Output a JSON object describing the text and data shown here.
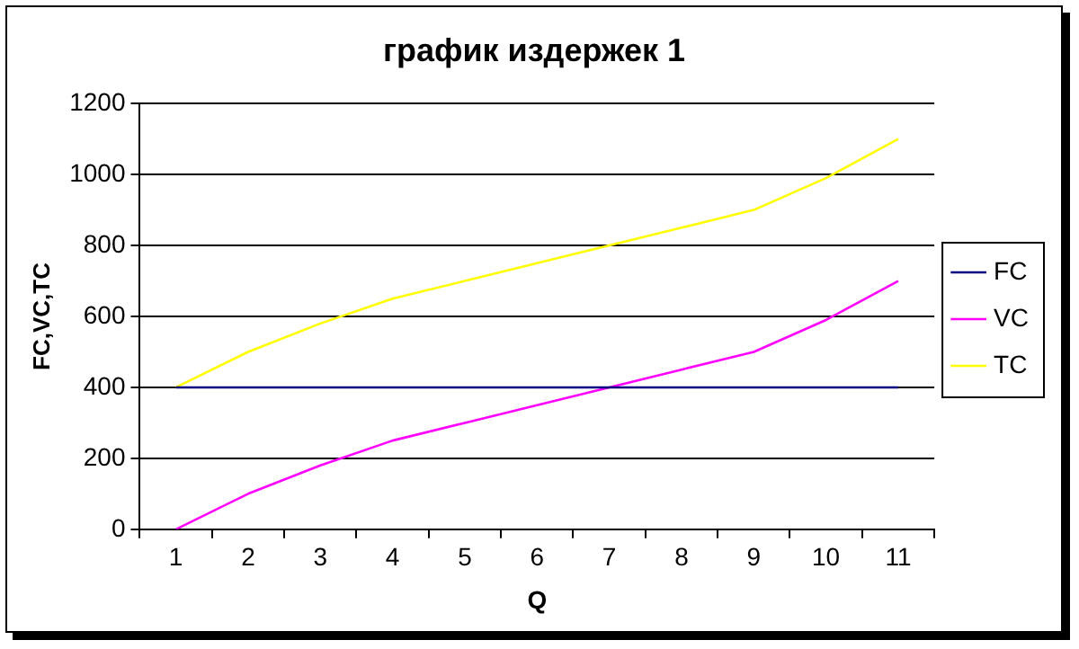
{
  "chart_data": {
    "type": "line",
    "title": "график издержек 1",
    "xlabel": "Q",
    "ylabel": "FC,VC,TC",
    "categories": [
      "1",
      "2",
      "3",
      "4",
      "5",
      "6",
      "7",
      "8",
      "9",
      "10",
      "11"
    ],
    "series": [
      {
        "name": "FC",
        "color": "#000080",
        "values": [
          400,
          400,
          400,
          400,
          400,
          400,
          400,
          400,
          400,
          400,
          400
        ]
      },
      {
        "name": "VC",
        "color": "#ff00ff",
        "values": [
          0,
          100,
          180,
          250,
          300,
          350,
          400,
          450,
          500,
          590,
          700
        ]
      },
      {
        "name": "TC",
        "color": "#ffff00",
        "values": [
          400,
          500,
          580,
          650,
          700,
          750,
          800,
          850,
          900,
          990,
          1100
        ]
      }
    ],
    "ylim": [
      0,
      1200
    ],
    "yticks": [
      0,
      200,
      400,
      600,
      800,
      1000,
      1200
    ],
    "grid": "y",
    "legend": "right",
    "marker": "none",
    "line_style": "solid"
  }
}
